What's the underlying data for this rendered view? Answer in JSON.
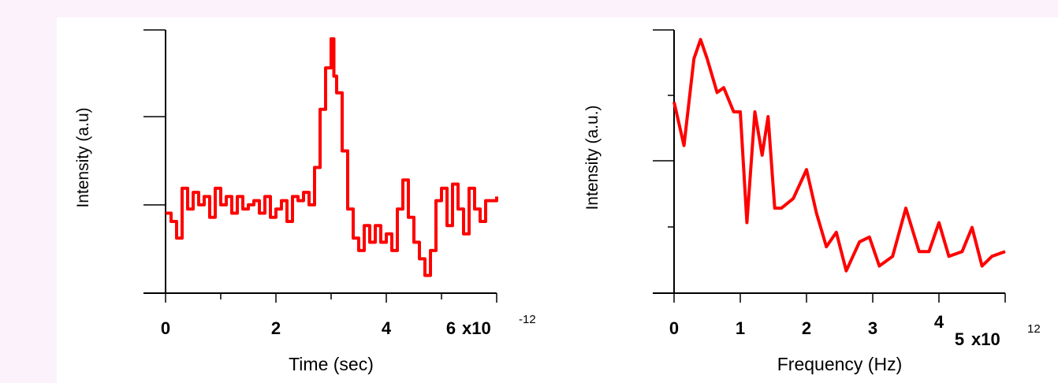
{
  "chart_data": [
    {
      "type": "line",
      "title": "",
      "xlabel": "Time (sec)",
      "ylabel": "Intensity (a.u)",
      "xlim": [
        0,
        6e-12
      ],
      "x_ticks": [
        "0",
        "2",
        "4",
        "6"
      ],
      "x_multiplier_base": "x10",
      "x_multiplier_exp": "-12",
      "color": "#ff0000",
      "series": [
        {
          "x": [
            0,
            0.1,
            0.2,
            0.3,
            0.4,
            0.5,
            0.6,
            0.7,
            0.8,
            0.9,
            1.0,
            1.1,
            1.2,
            1.3,
            1.4,
            1.5,
            1.6,
            1.7,
            1.8,
            1.9,
            2.0,
            2.1,
            2.2,
            2.3,
            2.4,
            2.5,
            2.6,
            2.7,
            2.8,
            2.9,
            3.0,
            3.05,
            3.1,
            3.2,
            3.3,
            3.4,
            3.5,
            3.6,
            3.7,
            3.8,
            3.9,
            4.0,
            4.1,
            4.2,
            4.3,
            4.4,
            4.5,
            4.6,
            4.7,
            4.8,
            4.9,
            5.0,
            5.1,
            5.2,
            5.3,
            5.4,
            5.5,
            5.6,
            5.7,
            5.8,
            5.9,
            6.0
          ],
          "y": [
            -0.15,
            -0.25,
            -0.45,
            0.15,
            -0.1,
            0.1,
            -0.05,
            0.05,
            -0.2,
            0.15,
            -0.05,
            0.05,
            -0.15,
            0.05,
            -0.1,
            -0.05,
            0.0,
            -0.15,
            0.05,
            -0.2,
            -0.1,
            0.0,
            -0.25,
            0.05,
            0.0,
            0.1,
            -0.05,
            0.4,
            1.1,
            1.6,
            1.95,
            1.5,
            1.3,
            0.6,
            -0.1,
            -0.45,
            -0.6,
            -0.3,
            -0.5,
            -0.3,
            -0.5,
            -0.4,
            -0.6,
            -0.1,
            0.25,
            -0.2,
            -0.5,
            -0.7,
            -0.9,
            -0.6,
            0.0,
            0.15,
            -0.3,
            0.2,
            -0.1,
            -0.4,
            0.15,
            -0.1,
            -0.25,
            0.0,
            0.0,
            0.05
          ]
        }
      ]
    },
    {
      "type": "line",
      "title": "",
      "xlabel": "Frequency (Hz)",
      "ylabel": "Intensity (a.u.)",
      "xlim": [
        0,
        5000000000000.0
      ],
      "x_ticks": [
        "0",
        "1",
        "2",
        "3",
        "4",
        "5"
      ],
      "x_multiplier_base": "x10",
      "x_multiplier_exp": "12",
      "color": "#ff0000",
      "series": [
        {
          "x": [
            0,
            0.15,
            0.3,
            0.4,
            0.5,
            0.65,
            0.75,
            0.9,
            1.0,
            1.1,
            1.22,
            1.33,
            1.42,
            1.52,
            1.62,
            1.8,
            2.0,
            2.15,
            2.3,
            2.45,
            2.6,
            2.8,
            2.95,
            3.1,
            3.3,
            3.5,
            3.7,
            3.85,
            4.0,
            4.15,
            4.35,
            4.5,
            4.65,
            4.8,
            5.0
          ],
          "y": [
            1.9,
            1.45,
            2.35,
            2.55,
            2.35,
            2.0,
            2.05,
            1.8,
            1.8,
            0.65,
            1.8,
            1.35,
            1.75,
            0.8,
            0.8,
            0.9,
            1.2,
            0.75,
            0.4,
            0.55,
            0.15,
            0.45,
            0.5,
            0.2,
            0.3,
            0.8,
            0.35,
            0.35,
            0.65,
            0.3,
            0.35,
            0.6,
            0.2,
            0.3,
            0.35
          ]
        }
      ]
    }
  ]
}
